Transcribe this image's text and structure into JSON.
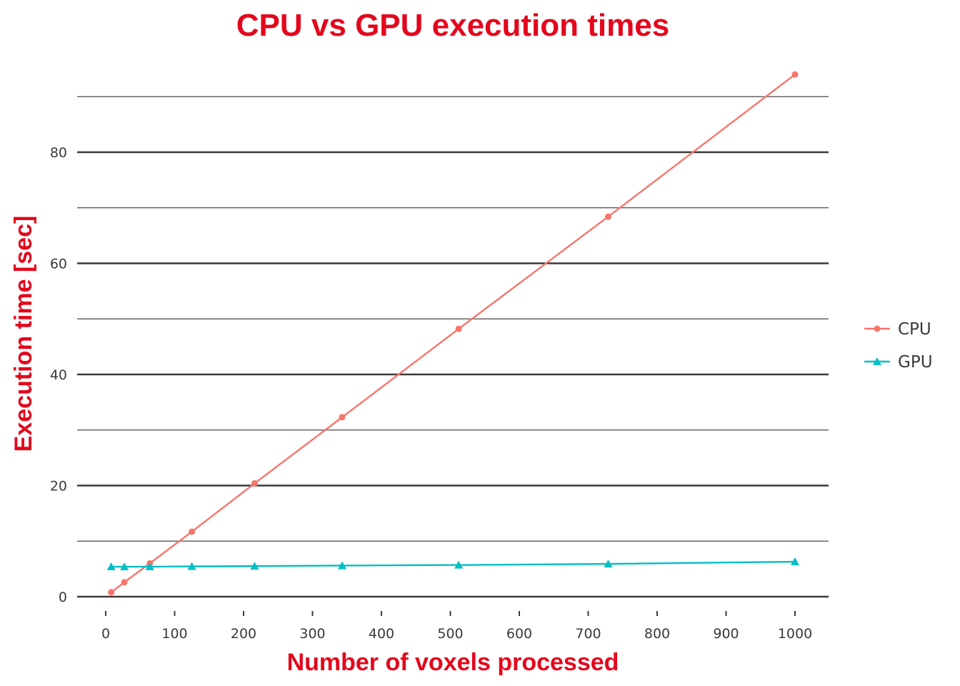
{
  "chart_data": {
    "type": "line",
    "title": "CPU vs GPU execution times",
    "xlabel": "Number of voxels processed",
    "ylabel": "Execution time [sec]",
    "xlim": [
      0,
      1000
    ],
    "ylim": [
      0,
      94
    ],
    "xticks": [
      0,
      100,
      200,
      300,
      400,
      500,
      600,
      700,
      800,
      900,
      1000
    ],
    "yticks": [
      0,
      20,
      40,
      60,
      80
    ],
    "yminor": [
      10,
      30,
      50,
      70,
      90
    ],
    "grid": true,
    "legend_position": "right",
    "x": [
      8,
      27,
      64,
      125,
      216,
      343,
      512,
      729,
      1000
    ],
    "series": [
      {
        "name": "CPU",
        "color": "#f8766d",
        "marker": "circle",
        "values": [
          0.8,
          2.6,
          6.0,
          11.7,
          20.4,
          32.3,
          48.2,
          68.4,
          94.0
        ]
      },
      {
        "name": "GPU",
        "color": "#00bfc4",
        "marker": "triangle",
        "values": [
          5.4,
          5.4,
          5.4,
          5.45,
          5.5,
          5.6,
          5.7,
          5.9,
          6.3
        ]
      }
    ]
  }
}
